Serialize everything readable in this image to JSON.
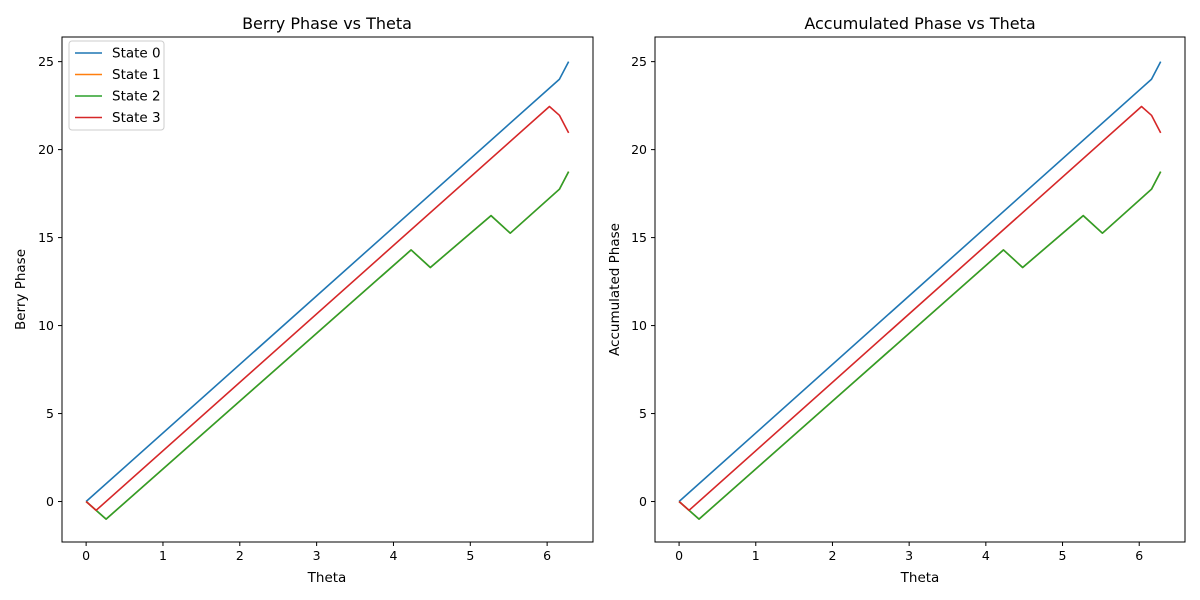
{
  "chart_data": [
    {
      "type": "line",
      "title": "Berry Phase vs Theta",
      "xlabel": "Theta",
      "ylabel": "Berry Phase",
      "xlim": [
        -0.314,
        6.597
      ],
      "ylim": [
        -2.3,
        26.4
      ],
      "xticks": [
        0,
        1,
        2,
        3,
        4,
        5,
        6
      ],
      "yticks": [
        0,
        5,
        10,
        15,
        20,
        25
      ],
      "grid": false,
      "legend": "upper-left",
      "series": [
        {
          "name": "State 0",
          "color": "#1f77b4",
          "x": [
            0,
            6.16,
            6.28
          ],
          "y": [
            0,
            24.0,
            25.0
          ]
        },
        {
          "name": "State 1",
          "color": "#ff7f0e",
          "x": [
            0,
            0.26,
            4.23,
            4.48,
            5.27,
            5.52,
            6.16,
            6.28
          ],
          "y": [
            0,
            -1.0,
            14.3,
            13.3,
            16.25,
            15.25,
            17.75,
            18.75
          ]
        },
        {
          "name": "State 2",
          "color": "#2ca02c",
          "x": [
            0,
            0.26,
            4.23,
            4.48,
            5.27,
            5.52,
            6.16,
            6.28
          ],
          "y": [
            0,
            -1.0,
            14.3,
            13.3,
            16.25,
            15.25,
            17.75,
            18.75
          ]
        },
        {
          "name": "State 3",
          "color": "#d62728",
          "x": [
            0,
            0.13,
            6.03,
            6.16,
            6.28
          ],
          "y": [
            0,
            -0.5,
            22.45,
            21.95,
            20.95
          ]
        }
      ]
    },
    {
      "type": "line",
      "title": "Accumulated Phase vs Theta",
      "xlabel": "Theta",
      "ylabel": "Accumulated Phase",
      "xlim": [
        -0.314,
        6.597
      ],
      "ylim": [
        -2.3,
        26.4
      ],
      "xticks": [
        0,
        1,
        2,
        3,
        4,
        5,
        6
      ],
      "yticks": [
        0,
        5,
        10,
        15,
        20,
        25
      ],
      "grid": false,
      "legend": "none",
      "series": [
        {
          "color": "#1f77b4",
          "x": [
            0,
            6.16,
            6.28
          ],
          "y": [
            0,
            24.0,
            25.0
          ]
        },
        {
          "color": "#ff7f0e",
          "x": [
            0,
            0.26,
            4.23,
            4.48,
            5.27,
            5.52,
            6.16,
            6.28
          ],
          "y": [
            0,
            -1.0,
            14.3,
            13.3,
            16.25,
            15.25,
            17.75,
            18.75
          ]
        },
        {
          "color": "#2ca02c",
          "x": [
            0,
            0.26,
            4.23,
            4.48,
            5.27,
            5.52,
            6.16,
            6.28
          ],
          "y": [
            0,
            -1.0,
            14.3,
            13.3,
            16.25,
            15.25,
            17.75,
            18.75
          ]
        },
        {
          "color": "#d62728",
          "x": [
            0,
            0.13,
            6.03,
            6.16,
            6.28
          ],
          "y": [
            0,
            -0.5,
            22.45,
            21.95,
            20.95
          ]
        }
      ]
    }
  ]
}
